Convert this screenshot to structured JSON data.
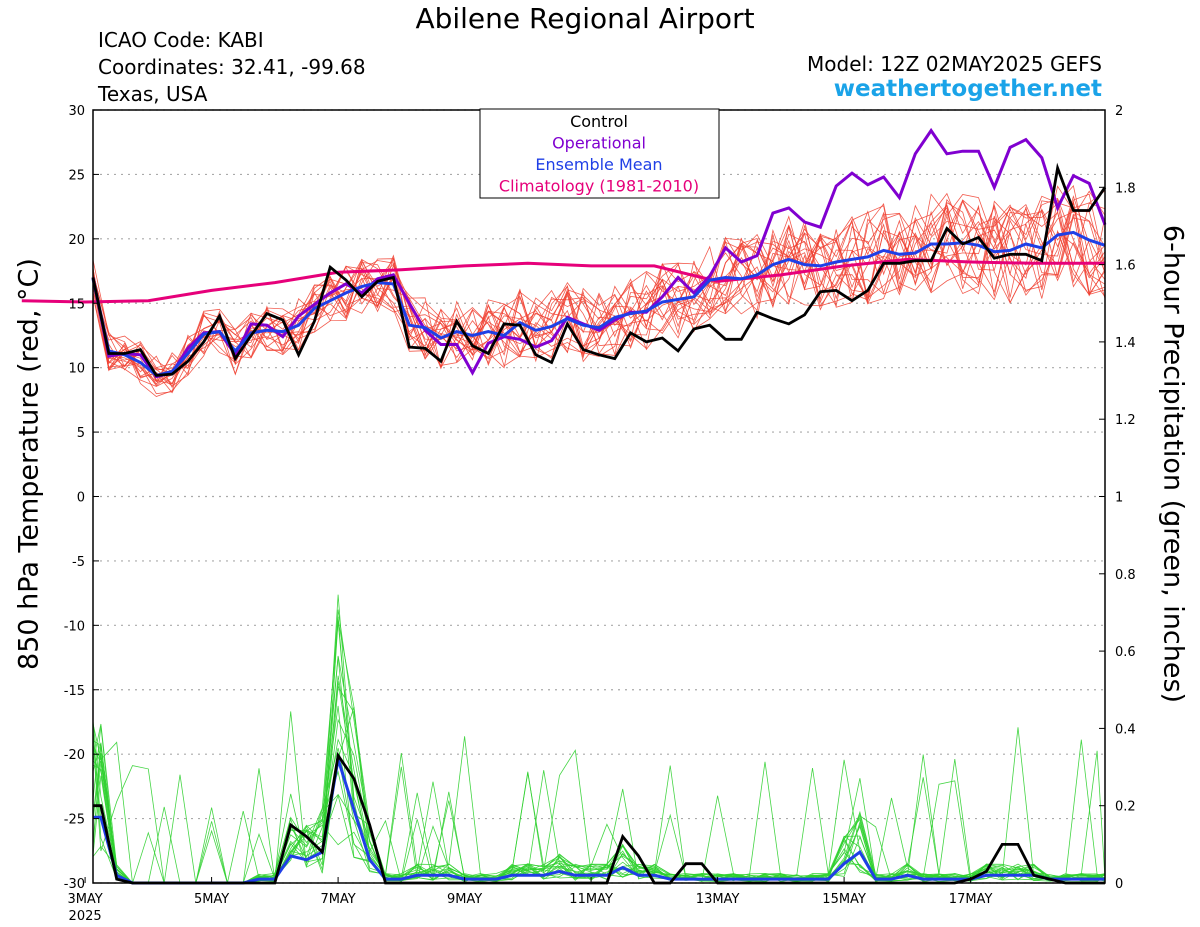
{
  "header": {
    "title": "Abilene Regional Airport",
    "icao": "ICAO Code: KABI",
    "coords": "Coordinates: 32.41, -99.68",
    "region": "Texas, USA",
    "model": "Model: 12Z 02MAY2025 GEFS",
    "site": "weathertogether.net"
  },
  "axes": {
    "left_label": "850 hPa Temperature (red, °C)",
    "right_label": "6-hour Precipitation (green, inches)"
  },
  "legend": [
    {
      "label": "Control",
      "color": "#000000"
    },
    {
      "label": "Operational",
      "color": "#8000d0"
    },
    {
      "label": "Ensemble Mean",
      "color": "#1f3fe6"
    },
    {
      "label": "Climatology (1981-2010)",
      "color": "#e6007a"
    }
  ],
  "chart_data": {
    "type": "line",
    "x_unit": "forecast hours from 00Z 02MAY2025",
    "xlim": [
      27,
      411
    ],
    "x_ticks": [
      {
        "x": 24,
        "label": "3MAY",
        "sub": "2025"
      },
      {
        "x": 72,
        "label": "5MAY"
      },
      {
        "x": 120,
        "label": "7MAY"
      },
      {
        "x": 168,
        "label": "9MAY"
      },
      {
        "x": 216,
        "label": "11MAY"
      },
      {
        "x": 264,
        "label": "13MAY"
      },
      {
        "x": 312,
        "label": "15MAY"
      },
      {
        "x": 360,
        "label": "17MAY"
      }
    ],
    "left_axis": {
      "ylim": [
        -30,
        30
      ],
      "ticks": [
        30,
        25,
        20,
        15,
        10,
        5,
        0,
        -5,
        -10,
        -15,
        -20,
        -25,
        -30
      ]
    },
    "right_axis": {
      "ylim": [
        0,
        2
      ],
      "ticks": [
        "2",
        "1.8",
        "1.6",
        "1.4",
        "1.2",
        "1",
        "0.8",
        "0.6",
        "0.4",
        "0.2",
        "0"
      ]
    },
    "grid": true,
    "colors": {
      "members_temp": "#f04030",
      "members_precip": "#30d030",
      "control": "#000000",
      "operational": "#8000d0",
      "mean": "#1f3fe6",
      "climatology": "#e6007a",
      "grid": "#aaaaaa"
    },
    "climatology": {
      "x": [
        0,
        24,
        48,
        72,
        96,
        120,
        144,
        168,
        192,
        216,
        240,
        264,
        288,
        312,
        336,
        360,
        384,
        411
      ],
      "y": [
        15.2,
        15.1,
        15.2,
        16.0,
        16.6,
        17.4,
        17.6,
        17.9,
        18.1,
        17.9,
        17.9,
        16.7,
        17.2,
        17.9,
        18.4,
        18.2,
        18.1,
        18.1
      ]
    },
    "control_temp": {
      "x": [
        27,
        33,
        39,
        45,
        51,
        57,
        63,
        69,
        75,
        81,
        87,
        93,
        99,
        105,
        111,
        117,
        123,
        129,
        135,
        141,
        147,
        153,
        159,
        165,
        171,
        177,
        183,
        189,
        195,
        201,
        207,
        213,
        219,
        225,
        231,
        237,
        243,
        249,
        255,
        261,
        267,
        273,
        279,
        285,
        291,
        297,
        303,
        309,
        315,
        321,
        327,
        333,
        339,
        345,
        351,
        357,
        363,
        369,
        375,
        381,
        387,
        393,
        399,
        405,
        411
      ],
      "y": [
        17.0,
        11.1,
        11.1,
        11.4,
        9.4,
        9.5,
        10.5,
        12.0,
        14.0,
        10.7,
        12.5,
        14.2,
        13.7,
        11.0,
        13.6,
        17.8,
        16.8,
        15.5,
        16.7,
        17.0,
        11.6,
        11.5,
        10.5,
        13.6,
        11.7,
        11.1,
        13.4,
        13.3,
        11.0,
        10.4,
        13.4,
        11.4,
        11.0,
        10.7,
        12.7,
        12.0,
        12.3,
        11.3,
        13.0,
        13.3,
        12.2,
        12.2,
        14.3,
        13.8,
        13.4,
        14.1,
        15.9,
        16.0,
        15.2,
        16.0,
        18.1,
        18.1,
        18.3,
        18.3,
        20.8,
        19.6,
        20.1,
        18.5,
        18.8,
        18.8,
        18.3,
        25.5,
        22.2,
        22.2,
        24.0
      ]
    },
    "operational_temp": {
      "x": [
        27,
        33,
        39,
        45,
        51,
        57,
        63,
        69,
        75,
        81,
        87,
        93,
        99,
        105,
        111,
        117,
        123,
        129,
        135,
        141,
        147,
        153,
        159,
        165,
        171,
        177,
        183,
        189,
        195,
        201,
        207,
        213,
        219,
        225,
        231,
        237,
        243,
        249,
        255,
        261,
        267,
        273,
        279,
        285,
        291,
        297,
        303,
        309,
        315,
        321,
        327,
        333,
        339,
        345,
        351,
        357,
        363,
        369,
        375,
        381,
        387,
        393,
        399,
        405,
        411
      ],
      "y": [
        17.0,
        10.9,
        11.1,
        11.0,
        9.3,
        9.6,
        11.5,
        12.7,
        12.8,
        11.0,
        13.4,
        13.3,
        12.4,
        14.0,
        14.9,
        15.8,
        16.5,
        15.8,
        16.9,
        17.2,
        15.0,
        12.9,
        11.8,
        11.8,
        9.6,
        11.9,
        12.4,
        12.2,
        11.6,
        12.1,
        13.9,
        13.4,
        12.9,
        13.7,
        14.3,
        14.3,
        15.5,
        17.0,
        15.8,
        17.1,
        19.3,
        18.2,
        18.7,
        22.0,
        22.4,
        21.3,
        20.9,
        24.1,
        25.1,
        24.2,
        24.8,
        23.2,
        26.6,
        28.4,
        26.6,
        26.8,
        26.8,
        24.0,
        27.1,
        27.7,
        26.3,
        22.4,
        24.9,
        24.3,
        21.1
      ]
    },
    "mean_temp": {
      "x": [
        27,
        33,
        39,
        45,
        51,
        57,
        63,
        69,
        75,
        81,
        87,
        93,
        99,
        105,
        111,
        117,
        123,
        129,
        135,
        141,
        147,
        153,
        159,
        165,
        171,
        177,
        183,
        189,
        195,
        201,
        207,
        213,
        219,
        225,
        231,
        237,
        243,
        249,
        255,
        261,
        267,
        273,
        279,
        285,
        291,
        297,
        303,
        309,
        315,
        321,
        327,
        333,
        339,
        345,
        351,
        357,
        363,
        369,
        375,
        381,
        387,
        393,
        399,
        405,
        411
      ],
      "y": [
        16.9,
        11.3,
        11.0,
        10.4,
        9.4,
        9.7,
        11.1,
        12.6,
        12.8,
        11.3,
        12.7,
        12.9,
        12.8,
        13.3,
        14.6,
        15.2,
        15.8,
        16.3,
        16.6,
        16.5,
        13.3,
        13.1,
        12.3,
        12.8,
        12.5,
        12.8,
        12.5,
        13.5,
        12.9,
        13.2,
        13.8,
        13.3,
        13.1,
        13.9,
        14.2,
        14.4,
        15.1,
        15.3,
        15.5,
        16.8,
        17.0,
        16.9,
        17.2,
        18.0,
        18.4,
        18.0,
        17.9,
        18.2,
        18.4,
        18.6,
        19.1,
        18.8,
        18.9,
        19.6,
        19.6,
        19.7,
        19.5,
        19.0,
        19.1,
        19.6,
        19.3,
        20.3,
        20.5,
        19.9,
        19.5
      ]
    },
    "control_precip": {
      "x": [
        27,
        30,
        36,
        42,
        48,
        54,
        60,
        66,
        72,
        78,
        84,
        90,
        96,
        102,
        108,
        114,
        120,
        126,
        132,
        138,
        144,
        150,
        156,
        162,
        168,
        174,
        180,
        186,
        192,
        198,
        204,
        210,
        216,
        222,
        228,
        234,
        240,
        246,
        252,
        258,
        264,
        270,
        276,
        282,
        288,
        294,
        300,
        306,
        312,
        318,
        324,
        330,
        336,
        342,
        348,
        354,
        360,
        366,
        372,
        378,
        384,
        390,
        396,
        402,
        408,
        411
      ],
      "y": [
        0.2,
        0.2,
        0.01,
        0.0,
        0.0,
        0.0,
        0.0,
        0.0,
        0.0,
        0.0,
        0.0,
        0.0,
        0.0,
        0.15,
        0.12,
        0.08,
        0.33,
        0.27,
        0.15,
        0.0,
        0.0,
        0.0,
        0.0,
        0.0,
        0.0,
        0.0,
        0.0,
        0.0,
        0.0,
        0.0,
        0.0,
        0.0,
        0.0,
        0.0,
        0.12,
        0.07,
        0.0,
        0.0,
        0.05,
        0.05,
        0.0,
        0.0,
        0.0,
        0.0,
        0.0,
        0.0,
        0.0,
        0.0,
        0.0,
        0.0,
        0.0,
        0.0,
        0.0,
        0.0,
        0.0,
        0.0,
        0.01,
        0.03,
        0.1,
        0.1,
        0.02,
        0.01,
        0.0,
        0.0,
        0.0,
        0.0
      ]
    },
    "mean_precip": {
      "x": [
        27,
        30,
        36,
        42,
        48,
        54,
        60,
        66,
        72,
        78,
        84,
        90,
        96,
        102,
        108,
        114,
        120,
        126,
        132,
        138,
        144,
        150,
        156,
        162,
        168,
        174,
        180,
        186,
        192,
        198,
        204,
        210,
        216,
        222,
        228,
        234,
        240,
        246,
        252,
        258,
        264,
        270,
        276,
        282,
        288,
        294,
        300,
        306,
        312,
        318,
        324,
        330,
        336,
        342,
        348,
        354,
        360,
        366,
        372,
        378,
        384,
        390,
        396,
        402,
        408,
        411
      ],
      "y": [
        0.17,
        0.17,
        0.02,
        0.0,
        0.0,
        0.0,
        0.0,
        0.0,
        0.0,
        0.0,
        0.0,
        0.01,
        0.01,
        0.07,
        0.06,
        0.08,
        0.32,
        0.19,
        0.06,
        0.01,
        0.01,
        0.02,
        0.02,
        0.02,
        0.01,
        0.01,
        0.01,
        0.02,
        0.02,
        0.02,
        0.03,
        0.02,
        0.02,
        0.02,
        0.04,
        0.02,
        0.02,
        0.01,
        0.01,
        0.01,
        0.01,
        0.01,
        0.01,
        0.01,
        0.01,
        0.01,
        0.01,
        0.01,
        0.05,
        0.08,
        0.01,
        0.01,
        0.02,
        0.01,
        0.01,
        0.01,
        0.01,
        0.02,
        0.02,
        0.02,
        0.02,
        0.01,
        0.01,
        0.01,
        0.01,
        0.01
      ]
    }
  }
}
